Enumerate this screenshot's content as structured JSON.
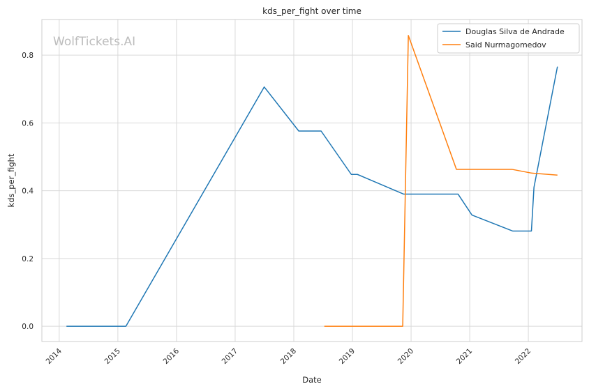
{
  "chart_data": {
    "type": "line",
    "title": "kds_per_fight over time",
    "xlabel": "Date",
    "ylabel": "kds_per_fight",
    "watermark": "WolfTickets.AI",
    "x_ticks": [
      "2014",
      "2015",
      "2016",
      "2017",
      "2018",
      "2019",
      "2020",
      "2021",
      "2022"
    ],
    "y_ticks": [
      "0.0",
      "0.2",
      "0.4",
      "0.6",
      "0.8"
    ],
    "ylim": [
      -0.045,
      0.905
    ],
    "xlim": [
      "2013-09-15",
      "2022-12-01"
    ],
    "grid": true,
    "legend_position": "top-right",
    "series": [
      {
        "name": "Douglas Silva de Andrade",
        "color": "#1f77b4",
        "points": [
          [
            "2014-02-15",
            0.0
          ],
          [
            "2015-02-20",
            0.0
          ],
          [
            "2017-07-01",
            0.706
          ],
          [
            "2018-02-01",
            0.576
          ],
          [
            "2018-06-20",
            0.576
          ],
          [
            "2018-12-25",
            0.448
          ],
          [
            "2019-02-01",
            0.448
          ],
          [
            "2019-11-15",
            0.39
          ],
          [
            "2020-10-20",
            0.39
          ],
          [
            "2021-01-15",
            0.328
          ],
          [
            "2021-09-25",
            0.281
          ],
          [
            "2022-01-20",
            0.281
          ],
          [
            "2022-02-05",
            0.41
          ],
          [
            "2022-07-01",
            0.766
          ]
        ]
      },
      {
        "name": "Said Nurmagomedov",
        "color": "#ff7f0e",
        "points": [
          [
            "2018-07-10",
            0.0
          ],
          [
            "2019-11-10",
            0.0
          ],
          [
            "2019-12-15",
            0.858
          ],
          [
            "2020-10-10",
            0.463
          ],
          [
            "2021-09-20",
            0.463
          ],
          [
            "2022-01-20",
            0.452
          ],
          [
            "2022-07-01",
            0.446
          ]
        ]
      }
    ]
  }
}
